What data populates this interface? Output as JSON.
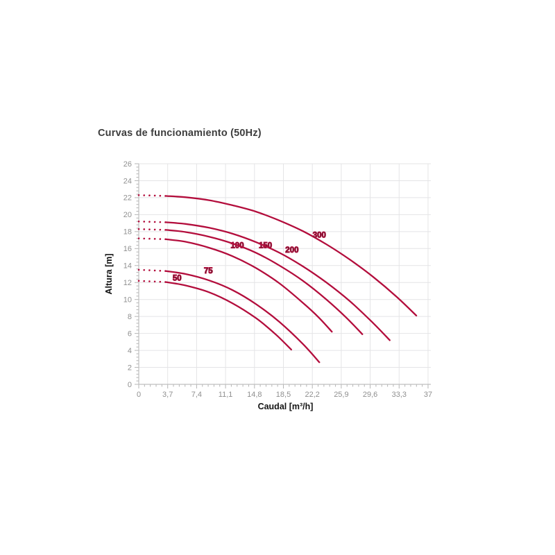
{
  "page": {
    "background": "#ffffff"
  },
  "chart_data": {
    "type": "line",
    "title": "Curvas de funcionamiento (50Hz)",
    "xlabel": "Caudal [m³/h]",
    "ylabel": "Altura [m]",
    "xlim": [
      0,
      37.4
    ],
    "ylim": [
      0,
      26
    ],
    "x_ticks": [
      0,
      3.7,
      7.4,
      11.1,
      14.8,
      18.5,
      22.2,
      25.9,
      29.6,
      33.3,
      37
    ],
    "x_tick_labels": [
      "0",
      "3,7",
      "7,4",
      "11,1",
      "14,8",
      "18,5",
      "22,2",
      "25,9",
      "29,6",
      "33,3",
      "37"
    ],
    "y_ticks": [
      0,
      2,
      4,
      6,
      8,
      10,
      12,
      14,
      16,
      18,
      20,
      22,
      24,
      26
    ],
    "y_tick_labels": [
      "0",
      "2",
      "4",
      "6",
      "8",
      "10",
      "12",
      "14",
      "16",
      "18",
      "20",
      "22",
      "24",
      "26"
    ],
    "x_minor_step": 0.74,
    "y_minor_step": 0.4,
    "grid": true,
    "legend_position": "inline-curve-labels",
    "series": [
      {
        "name": "50",
        "dotted_until": 3.5,
        "label_pos": [
          4.9,
          12.55
        ],
        "points": [
          [
            0,
            12.2
          ],
          [
            3.5,
            12.05
          ],
          [
            6,
            11.65
          ],
          [
            9,
            10.85
          ],
          [
            12,
            9.55
          ],
          [
            15,
            7.8
          ],
          [
            17.5,
            5.9
          ],
          [
            19.5,
            4.1
          ]
        ]
      },
      {
        "name": "75",
        "dotted_until": 3.5,
        "label_pos": [
          8.9,
          13.4
        ],
        "points": [
          [
            0,
            13.5
          ],
          [
            3.5,
            13.35
          ],
          [
            6,
            13.0
          ],
          [
            9,
            12.25
          ],
          [
            12,
            11.1
          ],
          [
            15,
            9.45
          ],
          [
            18,
            7.35
          ],
          [
            21,
            4.75
          ],
          [
            23.1,
            2.6
          ]
        ]
      },
      {
        "name": "100",
        "dotted_until": 3.5,
        "label_pos": [
          12.6,
          16.4
        ],
        "points": [
          [
            0,
            17.2
          ],
          [
            3.5,
            17.1
          ],
          [
            6,
            16.8
          ],
          [
            9,
            16.1
          ],
          [
            12,
            15.1
          ],
          [
            15,
            13.7
          ],
          [
            18,
            11.9
          ],
          [
            21,
            9.6
          ],
          [
            23,
            7.9
          ],
          [
            24.7,
            6.2
          ]
        ]
      },
      {
        "name": "150",
        "dotted_until": 3.5,
        "label_pos": [
          16.2,
          16.4
        ],
        "points": [
          [
            0,
            18.3
          ],
          [
            3.5,
            18.2
          ],
          [
            6,
            17.95
          ],
          [
            9,
            17.4
          ],
          [
            12,
            16.6
          ],
          [
            15,
            15.5
          ],
          [
            18,
            14.0
          ],
          [
            21,
            12.2
          ],
          [
            24,
            10.0
          ],
          [
            26.5,
            7.9
          ],
          [
            28.6,
            5.9
          ]
        ]
      },
      {
        "name": "200",
        "dotted_until": 3.5,
        "label_pos": [
          19.6,
          15.85
        ],
        "points": [
          [
            0,
            19.2
          ],
          [
            3.5,
            19.1
          ],
          [
            6,
            18.9
          ],
          [
            9,
            18.45
          ],
          [
            12,
            17.75
          ],
          [
            15,
            16.75
          ],
          [
            18,
            15.5
          ],
          [
            21,
            13.9
          ],
          [
            24,
            12.0
          ],
          [
            27,
            9.8
          ],
          [
            30,
            7.2
          ],
          [
            32.1,
            5.2
          ]
        ]
      },
      {
        "name": "300",
        "dotted_until": 3.5,
        "label_pos": [
          23.1,
          17.6
        ],
        "points": [
          [
            0,
            22.3
          ],
          [
            3.5,
            22.2
          ],
          [
            6,
            22.05
          ],
          [
            9,
            21.7
          ],
          [
            12,
            21.1
          ],
          [
            15,
            20.35
          ],
          [
            18,
            19.3
          ],
          [
            21,
            18.05
          ],
          [
            24,
            16.5
          ],
          [
            27,
            14.7
          ],
          [
            30,
            12.65
          ],
          [
            33,
            10.3
          ],
          [
            35.5,
            8.1
          ]
        ]
      }
    ],
    "colors": {
      "curve": "#b30d3c",
      "grid": "#e4e4e6",
      "axis": "#bfbfbf",
      "tick": "#b5b5b5",
      "tick_text": "#8f8f8f",
      "axis_title_text": "#141414",
      "curve_label_text": "#2b2b2b",
      "title_text": "#3d3d3d"
    }
  }
}
